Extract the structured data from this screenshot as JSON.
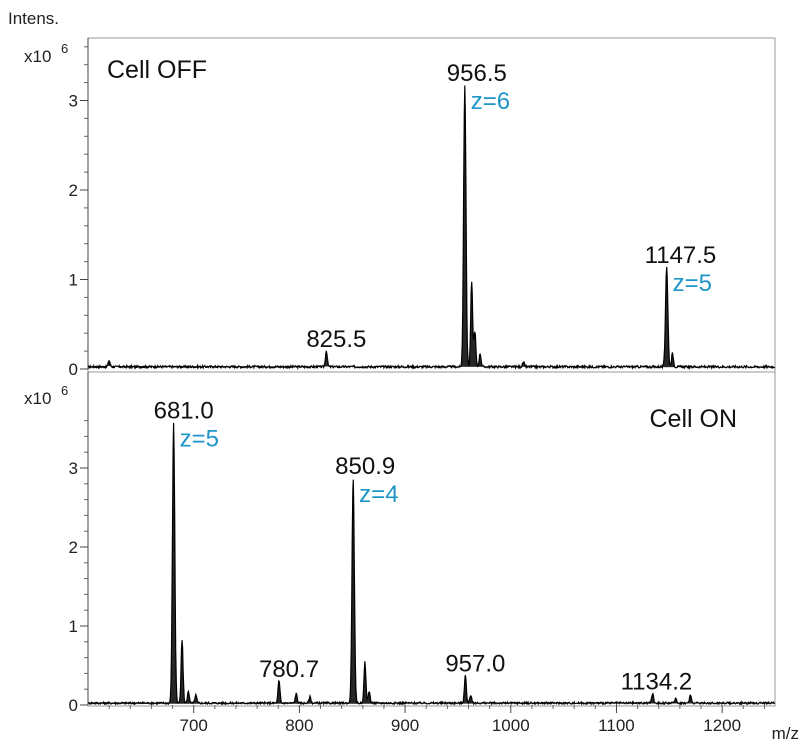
{
  "chart_data": [
    {
      "type": "line",
      "title": "Cell OFF",
      "title_position": "top-left",
      "ylabel": "Intens.",
      "yscale_label": "x10^6",
      "xlim": [
        600,
        1250
      ],
      "ylim": [
        0,
        3.8
      ],
      "yticks": [
        0,
        1,
        2,
        3
      ],
      "x_ticks_shown": false,
      "line_color": "#000000",
      "annotation_color": "#1f95c8",
      "peaks": [
        {
          "x": 956.5,
          "y": 3.15,
          "label": "956.5",
          "charge": "z=6"
        },
        {
          "x": 1147.5,
          "y": 1.12,
          "label": "1147.5",
          "charge": "z=5"
        },
        {
          "x": 825.5,
          "y": 0.18,
          "label": "825.5",
          "charge": ""
        }
      ],
      "minor_peaks": [
        {
          "x": 963.0,
          "y": 0.95
        },
        {
          "x": 966.0,
          "y": 0.4
        },
        {
          "x": 971.0,
          "y": 0.15
        },
        {
          "x": 1153.0,
          "y": 0.15
        },
        {
          "x": 620.0,
          "y": 0.07
        },
        {
          "x": 1012.0,
          "y": 0.05
        }
      ]
    },
    {
      "type": "line",
      "title": "Cell ON",
      "title_position": "top-right",
      "xlabel": "m/z",
      "yscale_label": "x10^6",
      "xlim": [
        600,
        1250
      ],
      "ylim": [
        0,
        3.8
      ],
      "yticks": [
        0,
        1,
        2,
        3
      ],
      "xticks": [
        700,
        800,
        900,
        1000,
        1100,
        1200
      ],
      "line_color": "#000000",
      "annotation_color": "#1f95c8",
      "peaks": [
        {
          "x": 681.0,
          "y": 3.55,
          "label": "681.0",
          "charge": "z=5"
        },
        {
          "x": 850.9,
          "y": 2.85,
          "label": "850.9",
          "charge": "z=4"
        },
        {
          "x": 780.7,
          "y": 0.28,
          "label": "780.7",
          "charge": ""
        },
        {
          "x": 957.0,
          "y": 0.35,
          "label": "957.0",
          "charge": ""
        },
        {
          "x": 1134.2,
          "y": 0.12,
          "label": "1134.2",
          "charge": ""
        }
      ],
      "minor_peaks": [
        {
          "x": 689.0,
          "y": 0.8
        },
        {
          "x": 695.0,
          "y": 0.15
        },
        {
          "x": 702.0,
          "y": 0.1
        },
        {
          "x": 797.0,
          "y": 0.12
        },
        {
          "x": 810.0,
          "y": 0.08
        },
        {
          "x": 862.0,
          "y": 0.52
        },
        {
          "x": 866.0,
          "y": 0.15
        },
        {
          "x": 962.0,
          "y": 0.1
        },
        {
          "x": 1156.0,
          "y": 0.06
        },
        {
          "x": 1170.0,
          "y": 0.1
        }
      ]
    }
  ],
  "axis_labels": {
    "intensity": "Intens.",
    "scale_prefix": "x10",
    "scale_exponent": "6",
    "mz": "m/z"
  }
}
